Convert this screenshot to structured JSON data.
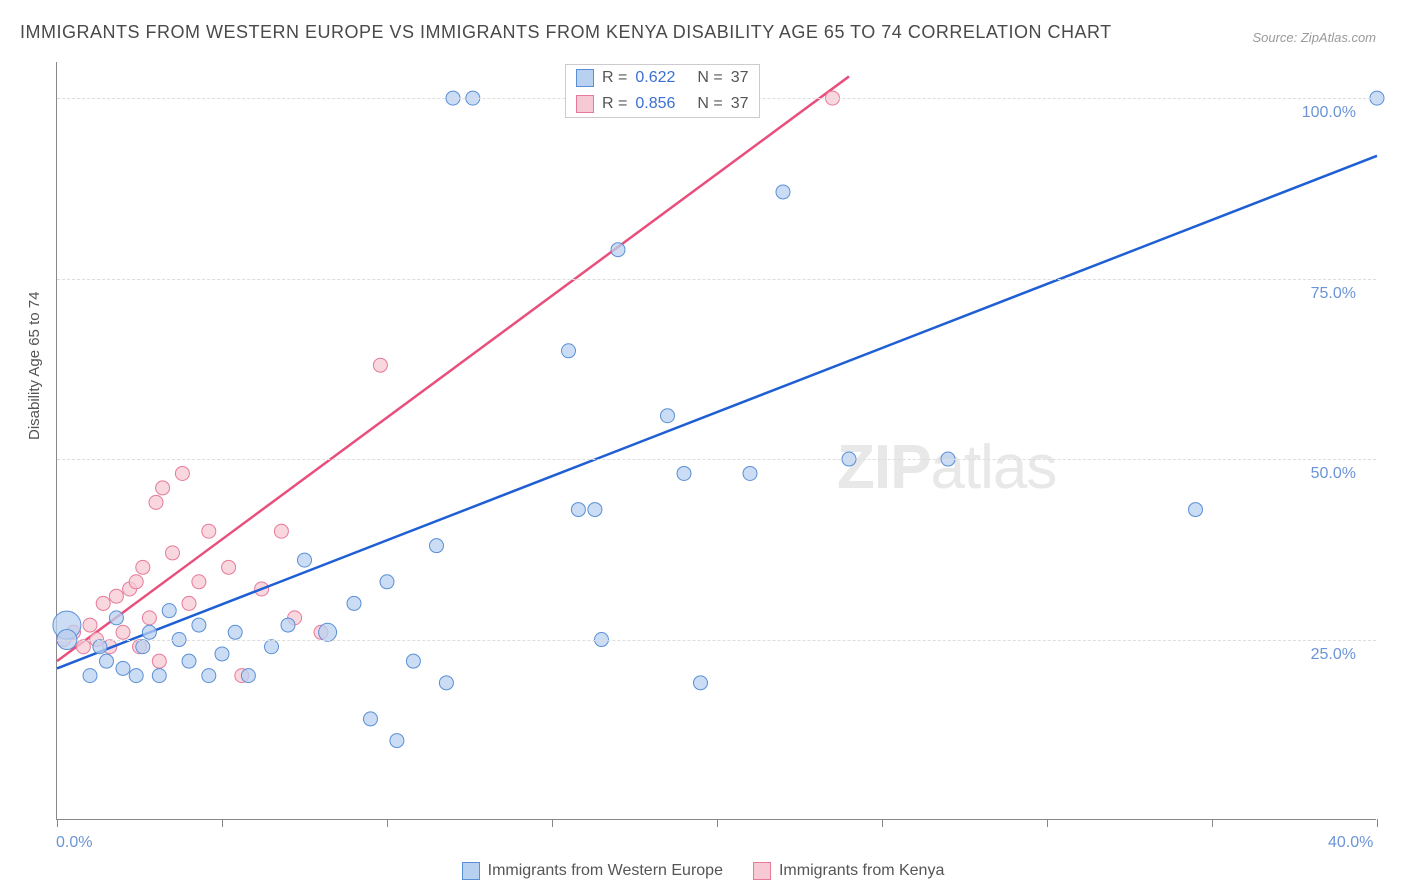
{
  "title": "IMMIGRANTS FROM WESTERN EUROPE VS IMMIGRANTS FROM KENYA DISABILITY AGE 65 TO 74 CORRELATION CHART",
  "source_label": "Source: ZipAtlas.com",
  "y_axis_label": "Disability Age 65 to 74",
  "watermark_bold": "ZIP",
  "watermark_light": "atlas",
  "chart": {
    "type": "scatter-with-trend",
    "background_color": "#ffffff",
    "grid_color": "#dddddd",
    "axis_color": "#888888",
    "x_domain": [
      0,
      40
    ],
    "y_domain": [
      0,
      105
    ],
    "x_ticks": [
      0,
      5,
      10,
      15,
      20,
      25,
      30,
      35,
      40
    ],
    "x_tick_labels": {
      "0": "0.0%",
      "40": "40.0%"
    },
    "y_gridlines": [
      25,
      50,
      75,
      100
    ],
    "y_tick_labels": [
      "25.0%",
      "50.0%",
      "75.0%",
      "100.0%"
    ],
    "label_fontsize": 16,
    "label_color": "#6b94d6",
    "series": [
      {
        "name": "Immigrants from Western Europe",
        "color_fill": "#b9d1f0",
        "color_stroke": "#5a8fd6",
        "trend_color": "#1f5fd4",
        "r": 0.622,
        "n": 37,
        "trend_p1": [
          0,
          21
        ],
        "trend_p2": [
          40,
          92
        ],
        "points": [
          [
            0.3,
            27,
            14
          ],
          [
            0.3,
            25,
            10
          ],
          [
            1.0,
            20
          ],
          [
            1.3,
            24
          ],
          [
            1.5,
            22
          ],
          [
            1.8,
            28
          ],
          [
            2.0,
            21
          ],
          [
            2.4,
            20
          ],
          [
            2.6,
            24
          ],
          [
            2.8,
            26
          ],
          [
            3.1,
            20
          ],
          [
            3.4,
            29
          ],
          [
            3.7,
            25
          ],
          [
            4.0,
            22
          ],
          [
            4.3,
            27
          ],
          [
            4.6,
            20
          ],
          [
            5.0,
            23
          ],
          [
            5.4,
            26
          ],
          [
            5.8,
            20
          ],
          [
            6.5,
            24
          ],
          [
            7.0,
            27
          ],
          [
            7.5,
            36
          ],
          [
            8.2,
            26,
            9
          ],
          [
            9.0,
            30
          ],
          [
            9.5,
            14
          ],
          [
            10.0,
            33
          ],
          [
            10.3,
            11
          ],
          [
            10.8,
            22
          ],
          [
            11.5,
            38
          ],
          [
            11.8,
            19
          ],
          [
            12.0,
            100
          ],
          [
            12.6,
            100
          ],
          [
            15.5,
            65
          ],
          [
            15.8,
            43
          ],
          [
            16.3,
            43
          ],
          [
            16.5,
            25
          ],
          [
            17.0,
            79
          ],
          [
            18.5,
            56
          ],
          [
            19.0,
            48
          ],
          [
            19.5,
            19
          ],
          [
            21.0,
            48
          ],
          [
            22.0,
            87
          ],
          [
            24.0,
            50
          ],
          [
            27.0,
            50
          ],
          [
            34.5,
            43
          ],
          [
            40.0,
            100
          ]
        ]
      },
      {
        "name": "Immigrants from Kenya",
        "color_fill": "#f7c9d4",
        "color_stroke": "#e77a9a",
        "trend_color": "#e94f7c",
        "r": 0.856,
        "n": 37,
        "trend_p1": [
          0,
          22
        ],
        "trend_p2": [
          24,
          103
        ],
        "points": [
          [
            0.2,
            25
          ],
          [
            0.5,
            26
          ],
          [
            0.8,
            24
          ],
          [
            1.0,
            27
          ],
          [
            1.2,
            25
          ],
          [
            1.4,
            30
          ],
          [
            1.6,
            24
          ],
          [
            1.8,
            31
          ],
          [
            2.0,
            26
          ],
          [
            2.2,
            32
          ],
          [
            2.4,
            33
          ],
          [
            2.5,
            24
          ],
          [
            2.6,
            35
          ],
          [
            2.8,
            28
          ],
          [
            3.0,
            44
          ],
          [
            3.1,
            22
          ],
          [
            3.2,
            46
          ],
          [
            3.5,
            37
          ],
          [
            3.8,
            48
          ],
          [
            4.0,
            30
          ],
          [
            4.3,
            33
          ],
          [
            4.6,
            40
          ],
          [
            5.2,
            35
          ],
          [
            5.6,
            20
          ],
          [
            6.2,
            32
          ],
          [
            6.8,
            40
          ],
          [
            7.2,
            28
          ],
          [
            8.0,
            26
          ],
          [
            9.8,
            63
          ],
          [
            23.5,
            100
          ]
        ]
      }
    ]
  },
  "legend_top": {
    "rows": [
      {
        "swatch_fill": "#b9d1f0",
        "swatch_stroke": "#5a8fd6",
        "r_label": "R =",
        "r_value": "0.622",
        "n_label": "N =",
        "n_value": "37"
      },
      {
        "swatch_fill": "#f7c9d4",
        "swatch_stroke": "#e77a9a",
        "r_label": "R =",
        "r_value": "0.856",
        "n_label": "N =",
        "n_value": "37"
      }
    ]
  },
  "legend_bottom": {
    "items": [
      {
        "swatch_fill": "#b9d1f0",
        "swatch_stroke": "#5a8fd6",
        "label": "Immigrants from Western Europe"
      },
      {
        "swatch_fill": "#f7c9d4",
        "swatch_stroke": "#e77a9a",
        "label": "Immigrants from Kenya"
      }
    ]
  }
}
